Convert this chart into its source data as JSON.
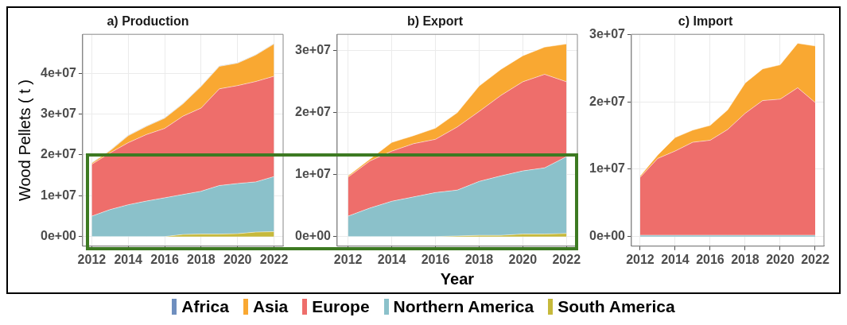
{
  "chart_data": [
    {
      "type": "area",
      "title": "a) Production",
      "ylabel": "Wood Pellets ( t )",
      "stacked": true,
      "grid": true,
      "legend": "bottom",
      "x": [
        2012,
        2013,
        2014,
        2015,
        2016,
        2017,
        2018,
        2019,
        2020,
        2021,
        2022
      ],
      "xlim": [
        2011.5,
        2022.5
      ],
      "xticks": [
        2012,
        2014,
        2016,
        2018,
        2020,
        2022
      ],
      "ylim": [
        -2360000,
        49560000
      ],
      "yticks": [
        {
          "value": 0,
          "label": "0e+00"
        },
        {
          "value": 10000000,
          "label": "1e+07"
        },
        {
          "value": 20000000,
          "label": "2e+07"
        },
        {
          "value": 30000000,
          "label": "3e+07"
        },
        {
          "value": 40000000,
          "label": "4e+07"
        }
      ],
      "series": [
        {
          "name": "South America",
          "color": "#c6b93b",
          "values": [
            0,
            0,
            0,
            0,
            0,
            500000,
            600000,
            600000,
            700000,
            1100000,
            1200000
          ]
        },
        {
          "name": "Northern America",
          "color": "#8bc1ca",
          "values": [
            5000000,
            6600000,
            7800000,
            8700000,
            9500000,
            9800000,
            10500000,
            11900000,
            12300000,
            12300000,
            13500000
          ]
        },
        {
          "name": "Europe",
          "color": "#ee6e6b",
          "values": [
            12700000,
            13900000,
            15200000,
            16300000,
            17000000,
            19200000,
            20400000,
            23700000,
            24000000,
            24600000,
            24600000
          ]
        },
        {
          "name": "Asia",
          "color": "#f9a832",
          "values": [
            300000,
            500000,
            1700000,
            2000000,
            2500000,
            3000000,
            5300000,
            5500000,
            5500000,
            6500000,
            7900000
          ]
        },
        {
          "name": "Africa",
          "color": "#6f8fbf",
          "values": [
            100000,
            100000,
            100000,
            100000,
            100000,
            100000,
            100000,
            100000,
            100000,
            100000,
            100000
          ]
        }
      ]
    },
    {
      "type": "area",
      "title": "b) Export",
      "xlabel": "Year",
      "stacked": true,
      "grid": true,
      "x": [
        2012,
        2013,
        2014,
        2015,
        2016,
        2017,
        2018,
        2019,
        2020,
        2021,
        2022
      ],
      "xlim": [
        2011.5,
        2022.5
      ],
      "xticks": [
        2012,
        2014,
        2016,
        2018,
        2020,
        2022
      ],
      "ylim": [
        -1555000,
        32660000
      ],
      "yticks": [
        {
          "value": 0,
          "label": "0e+00"
        },
        {
          "value": 10000000,
          "label": "1e+07"
        },
        {
          "value": 20000000,
          "label": "2e+07"
        },
        {
          "value": 30000000,
          "label": "3e+07"
        }
      ],
      "series": [
        {
          "color": "#c6b93b",
          "values": [
            0,
            0,
            0,
            0,
            0,
            100000,
            200000,
            200000,
            400000,
            400000,
            500000
          ]
        },
        {
          "color": "#8bc1ca",
          "values": [
            3300000,
            4600000,
            5700000,
            6400000,
            7100000,
            7400000,
            8700000,
            9600000,
            10200000,
            10700000,
            12400000
          ]
        },
        {
          "color": "#ee6e6b",
          "values": [
            6300000,
            7600000,
            8100000,
            8600000,
            8600000,
            10200000,
            11300000,
            13000000,
            14400000,
            15100000,
            12100000
          ]
        },
        {
          "color": "#f9a832",
          "values": [
            200000,
            300000,
            1400000,
            1300000,
            1800000,
            2300000,
            4100000,
            4200000,
            4200000,
            4400000,
            6100000
          ]
        }
      ]
    },
    {
      "type": "area",
      "title": "c) Import",
      "stacked": true,
      "grid": true,
      "x": [
        2012,
        2013,
        2014,
        2015,
        2016,
        2017,
        2018,
        2019,
        2020,
        2021,
        2022
      ],
      "xlim": [
        2011.5,
        2022.5
      ],
      "xticks": [
        2012,
        2014,
        2016,
        2018,
        2020,
        2022
      ],
      "ylim": [
        -1430000,
        30030000
      ],
      "yticks": [
        {
          "value": 0,
          "label": "0e+00"
        },
        {
          "value": 10000000,
          "label": "1e+07"
        },
        {
          "value": 20000000,
          "label": "2e+07"
        },
        {
          "value": 30000000,
          "label": "3e+07"
        }
      ],
      "series": [
        {
          "color": "#8bc1ca",
          "values": [
            200000,
            200000,
            200000,
            200000,
            200000,
            200000,
            200000,
            200000,
            200000,
            200000,
            200000
          ]
        },
        {
          "color": "#ee6e6b",
          "values": [
            8600000,
            11400000,
            12500000,
            13800000,
            14100000,
            15700000,
            18100000,
            20000000,
            20200000,
            21900000,
            19700000
          ]
        },
        {
          "color": "#f9a832",
          "values": [
            200000,
            500000,
            2000000,
            1800000,
            2200000,
            2900000,
            4500000,
            4700000,
            5100000,
            6600000,
            8400000
          ]
        }
      ]
    }
  ]
}
